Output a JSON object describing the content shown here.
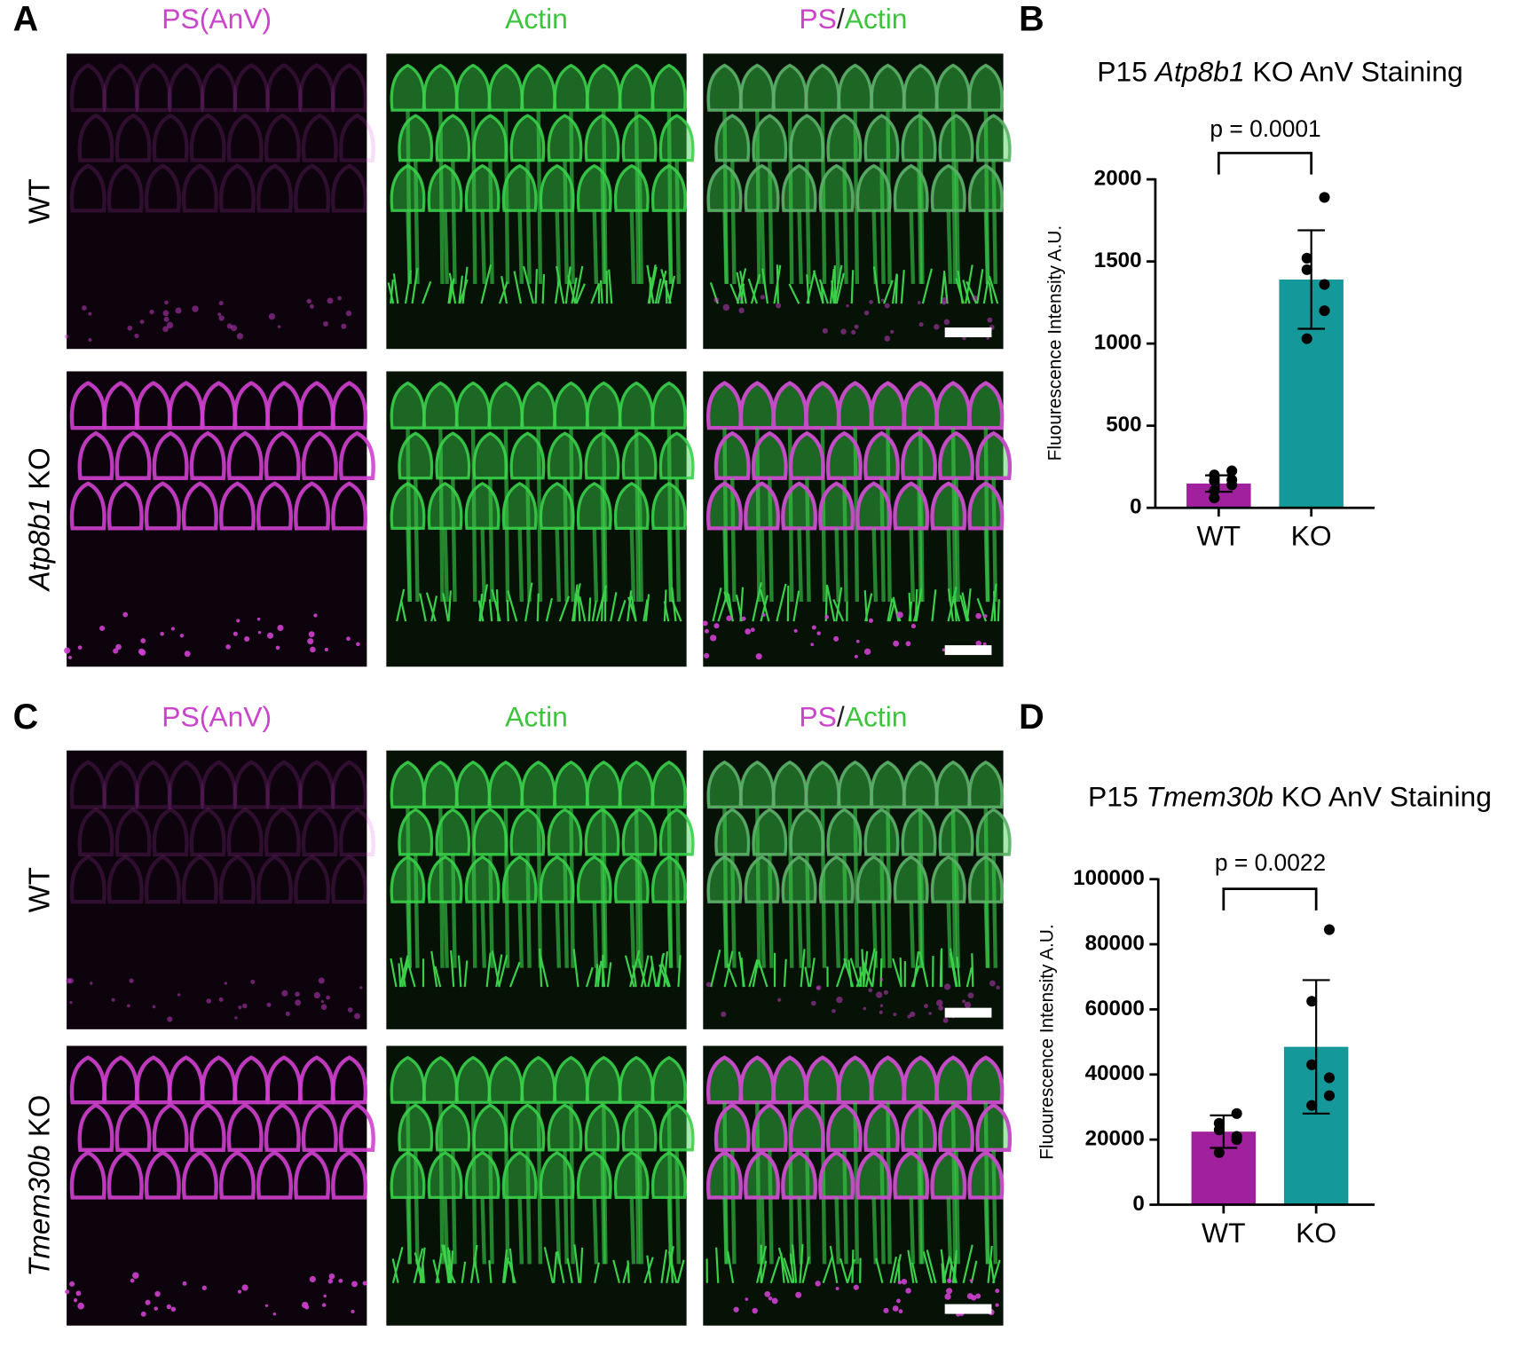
{
  "figure": {
    "panel_labels": [
      "A",
      "B",
      "C",
      "D"
    ],
    "column_headers": [
      [
        {
          "text": "PS(AnV)",
          "color": "#cc44cc"
        }
      ],
      [
        {
          "text": "Actin",
          "color": "#3cc43c"
        }
      ],
      [
        {
          "text": "PS",
          "color": "#cc44cc"
        },
        {
          "text": "/",
          "color": "#222222"
        },
        {
          "text": "Actin",
          "color": "#3cc43c"
        }
      ]
    ],
    "row_labels_top": [
      [
        {
          "text": "WT"
        }
      ],
      [
        {
          "text": "Atp8b1",
          "style": "italic"
        },
        {
          "text": " KO"
        }
      ]
    ],
    "row_labels_bottom": [
      [
        {
          "text": "WT"
        }
      ],
      [
        {
          "text": "Tmem30b",
          "style": "italic"
        },
        {
          "text": " KO"
        }
      ]
    ]
  },
  "chart_data": [
    {
      "type": "bar",
      "title": [
        {
          "text": "P15 "
        },
        {
          "text": "Atp8b1",
          "style": "italic"
        },
        {
          "text": " KO AnV Staining"
        }
      ],
      "y_label": "Fluourescence Intensity A.U.",
      "categories": [
        "WT",
        "KO"
      ],
      "values": [
        148,
        1390
      ],
      "errors": [
        50,
        300
      ],
      "points": [
        [
          225,
          200,
          165,
          140,
          170,
          105,
          60
        ],
        [
          1890,
          1520,
          1450,
          1360,
          1200,
          1030
        ]
      ],
      "colors": [
        "#a0209e",
        "#15989a"
      ],
      "annotation": "p = 0.0001",
      "ylim": [
        0,
        2000
      ],
      "yticks": [
        0,
        500,
        1000,
        1500,
        2000
      ]
    },
    {
      "type": "bar",
      "title": [
        {
          "text": "P15 "
        },
        {
          "text": "Tmem30b",
          "style": "italic"
        },
        {
          "text": " KO AnV Staining"
        }
      ],
      "y_label": "Fluourescence Intensity A.U.",
      "categories": [
        "WT",
        "KO"
      ],
      "values": [
        22450,
        48500
      ],
      "errors": [
        5000,
        20500
      ],
      "points": [
        [
          28000,
          25000,
          23000,
          21000,
          20000,
          16000
        ],
        [
          84500,
          62500,
          43000,
          39000,
          33500,
          30500
        ]
      ],
      "colors": [
        "#a0209e",
        "#15989a"
      ],
      "annotation": "p = 0.0022",
      "ylim": [
        0,
        100000
      ],
      "yticks": [
        0,
        20000,
        40000,
        60000,
        80000,
        100000
      ]
    }
  ]
}
